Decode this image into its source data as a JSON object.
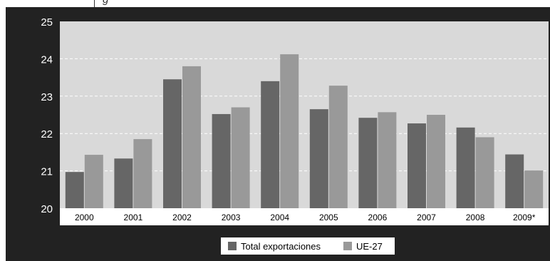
{
  "caption": "g",
  "colors": {
    "background": "#222222",
    "plot_area": "#d9d9d9",
    "series_total": "#666666",
    "series_ue": "#999999",
    "text_light": "#ffffff",
    "text_dark": "#000000"
  },
  "chart_data": {
    "type": "bar",
    "title": "",
    "xlabel": "",
    "ylabel": "",
    "categories": [
      "2000",
      "2001",
      "2002",
      "2003",
      "2004",
      "2005",
      "2006",
      "2007",
      "2008",
      "2009*"
    ],
    "series": [
      {
        "name": "Total exportaciones",
        "color": "#666666",
        "values": [
          20.97,
          21.33,
          23.45,
          22.52,
          23.4,
          22.65,
          22.42,
          22.27,
          22.16,
          21.44
        ]
      },
      {
        "name": "UE-27",
        "color": "#999999",
        "values": [
          21.43,
          21.85,
          23.8,
          22.7,
          24.12,
          23.28,
          22.57,
          22.5,
          21.9,
          21.01
        ]
      }
    ],
    "ylim": [
      20,
      25
    ],
    "yticks": [
      20,
      21,
      22,
      23,
      24,
      25
    ],
    "grid": true,
    "legend_position": "bottom-center"
  }
}
